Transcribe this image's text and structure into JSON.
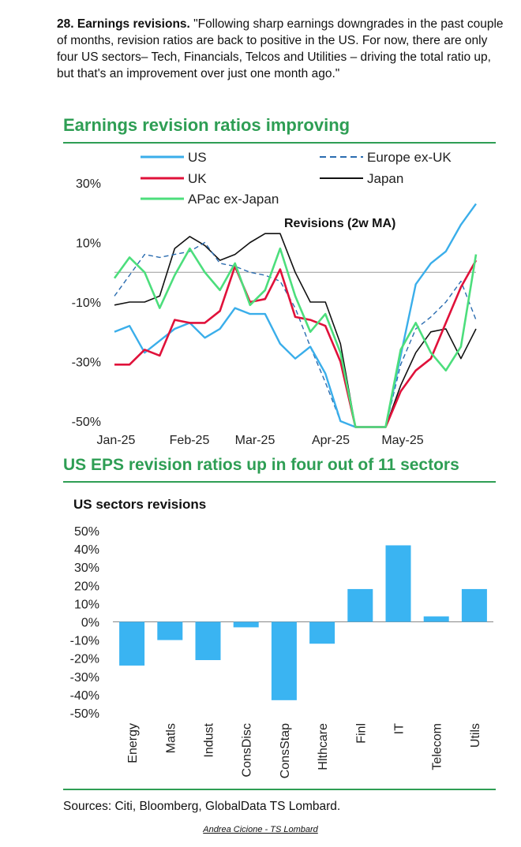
{
  "intro": {
    "number_title": "28. Earnings revisions.",
    "text": "\"Following sharp earnings downgrades in the past couple of months, revision ratios are back to positive in the US. For now, there are only four US sectors– Tech, Financials, Telcos and Utilities – driving the total ratio up, but that's an improvement over just one month ago.\""
  },
  "sources": "Sources: Citi, Bloomberg, GlobalData TS Lombard.",
  "author": "Andrea Cicione - TS Lombard",
  "colors": {
    "green": "#2e9e54",
    "us": "#3aaeea",
    "uk": "#e0113a",
    "apac": "#4cde7c",
    "europe": "#2a6cb0",
    "japan": "#111111",
    "bar": "#3ab4f2"
  },
  "chart_data": [
    {
      "type": "line",
      "title": "Earnings revision ratios improving",
      "annotation": "Revisions (2w MA)",
      "xlabels": [
        "Jan-25",
        "Feb-25",
        "Mar-25",
        "Apr-25",
        "May-25"
      ],
      "yticks": [
        "30%",
        "10%",
        "-10%",
        "-30%",
        "-50%"
      ],
      "ylim": [
        -50,
        30
      ],
      "legend": [
        "US",
        "Europe ex-UK",
        "UK",
        "Japan",
        "APac ex-Japan"
      ],
      "series": [
        {
          "name": "US",
          "values": [
            -20,
            -18,
            -27,
            -23,
            -19,
            -17,
            -22,
            -19,
            -12,
            -14,
            -14,
            -24,
            -29,
            -25,
            -34,
            -50,
            -52,
            -52,
            -52,
            -28,
            -4,
            3,
            7,
            16,
            23
          ]
        },
        {
          "name": "Europe ex-UK",
          "values": [
            -8,
            -1,
            6,
            5,
            6,
            7,
            10,
            3,
            2,
            0,
            -1,
            -3,
            -12,
            -25,
            -37,
            -50,
            -52,
            -52,
            -52,
            -31,
            -19,
            -15,
            -10,
            -3,
            -16
          ]
        },
        {
          "name": "UK",
          "values": [
            -31,
            -31,
            -26,
            -28,
            -16,
            -17,
            -17,
            -13,
            2,
            -10,
            -9,
            1,
            -15,
            -16,
            -18,
            -30,
            -52,
            -52,
            -52,
            -40,
            -33,
            -29,
            -17,
            -5,
            4
          ]
        },
        {
          "name": "Japan",
          "values": [
            -11,
            -10,
            -10,
            -8,
            8,
            12,
            9,
            4,
            6,
            10,
            13,
            13,
            0,
            -10,
            -10,
            -24,
            -52,
            -52,
            -52,
            -38,
            -27,
            -20,
            -19,
            -29,
            -19
          ]
        },
        {
          "name": "APac ex-Japan",
          "values": [
            -2,
            5,
            0,
            -12,
            -1,
            8,
            0,
            -6,
            3,
            -11,
            -6,
            8,
            -8,
            -20,
            -14,
            -27,
            -52,
            -52,
            -52,
            -26,
            -17,
            -27,
            -33,
            -25,
            6
          ]
        }
      ]
    },
    {
      "type": "bar",
      "title": "US EPS revision ratios up in four out of 11 sectors",
      "subtitle": "US sectors revisions",
      "categories": [
        "Energy",
        "Matls",
        "Indust",
        "ConsDisc",
        "ConsStap",
        "Hlthcare",
        "Finl",
        "IT",
        "Telecom",
        "Utils"
      ],
      "values": [
        -24,
        -10,
        -21,
        -3,
        -43,
        -12,
        18,
        42,
        3,
        18
      ],
      "yticks": [
        "50%",
        "40%",
        "30%",
        "20%",
        "10%",
        "0%",
        "-10%",
        "-20%",
        "-30%",
        "-40%",
        "-50%"
      ],
      "ylim": [
        -50,
        50
      ]
    }
  ]
}
